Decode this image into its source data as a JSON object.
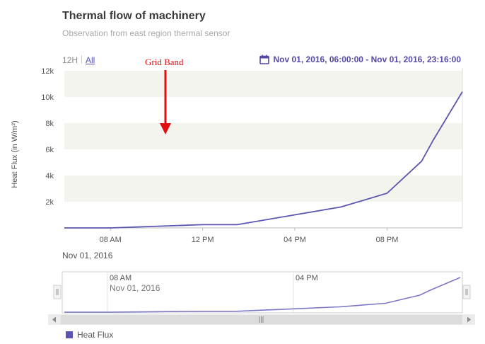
{
  "header": {
    "title": "Thermal flow of machinery",
    "subtitle": "Observation from east region thermal sensor"
  },
  "time_buttons": [
    {
      "label": "12H",
      "active": false
    },
    {
      "label": "All",
      "active": true
    }
  ],
  "date_range": {
    "text": "Nov 01, 2016, 06:00:00 - Nov 01, 2016, 23:16:00",
    "icon": "calendar-icon"
  },
  "annotation": {
    "text": "Grid Band",
    "color": "#e01010"
  },
  "date_label": "Nov 01, 2016",
  "legend": {
    "label": "Heat Flux",
    "color": "#5a56b0"
  },
  "chart_data": {
    "type": "line",
    "ylabel": "Heat Flux (in W/m²)",
    "xlabel": "",
    "x_domain": [
      "06:00",
      "23:16"
    ],
    "ylim": [
      0,
      12000
    ],
    "y_ticks": [
      "2k",
      "4k",
      "6k",
      "8k",
      "10k",
      "12k"
    ],
    "x_ticks": [
      "08 AM",
      "12 PM",
      "04 PM",
      "08 PM"
    ],
    "grid_bands": true,
    "series": [
      {
        "name": "Heat Flux",
        "color": "#5a56b0",
        "points": [
          {
            "x": "06:00",
            "y": 0
          },
          {
            "x": "08:00",
            "y": 0
          },
          {
            "x": "12:00",
            "y": 250
          },
          {
            "x": "13:30",
            "y": 250
          },
          {
            "x": "16:00",
            "y": 1000
          },
          {
            "x": "18:00",
            "y": 1600
          },
          {
            "x": "20:00",
            "y": 2650
          },
          {
            "x": "21:30",
            "y": 5100
          },
          {
            "x": "22:00",
            "y": 6700
          },
          {
            "x": "23:16",
            "y": 10400
          }
        ]
      }
    ],
    "navigator": {
      "time_labels": [
        {
          "time": "08 AM",
          "date": "Nov 01, 2016"
        },
        {
          "time": "04 PM",
          "date": ""
        }
      ]
    }
  }
}
